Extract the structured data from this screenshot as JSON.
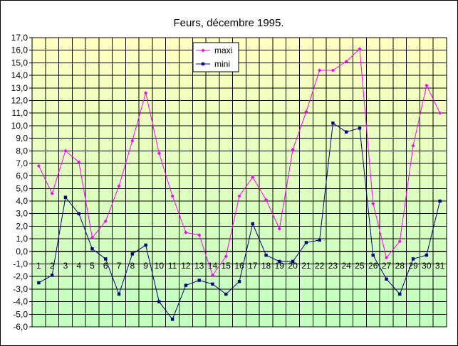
{
  "chart_data": {
    "type": "line",
    "title": "Feurs, décembre 1995.",
    "xlabel": "",
    "ylabel": "",
    "ylim": [
      -6,
      17
    ],
    "ytick_step": 1,
    "ytick_format": "comma1",
    "grid": true,
    "legend_position": "top-center",
    "x": [
      1,
      2,
      3,
      4,
      5,
      6,
      7,
      8,
      9,
      10,
      11,
      12,
      13,
      14,
      15,
      16,
      17,
      18,
      19,
      20,
      21,
      22,
      23,
      24,
      25,
      26,
      27,
      28,
      29,
      30,
      31
    ],
    "series": [
      {
        "name": "maxi",
        "color": "#ff00ff",
        "marker": "diamond",
        "values": [
          6.8,
          4.6,
          8.0,
          7.1,
          1.1,
          2.4,
          5.2,
          8.8,
          12.6,
          7.8,
          4.4,
          1.5,
          1.3,
          -1.9,
          -0.4,
          4.4,
          5.9,
          4.1,
          1.8,
          8.1,
          11.1,
          14.4,
          14.4,
          15.1,
          16.1,
          3.8,
          -0.5,
          0.8,
          8.4,
          13.2,
          11.0
        ]
      },
      {
        "name": "mini",
        "color": "#000080",
        "marker": "square",
        "values": [
          -2.5,
          -1.9,
          4.3,
          3.0,
          0.2,
          -0.6,
          -3.4,
          -0.2,
          0.5,
          -4.0,
          -5.4,
          -2.7,
          -2.3,
          -2.6,
          -3.4,
          -2.4,
          2.2,
          -0.3,
          -0.8,
          -0.8,
          0.7,
          0.9,
          10.2,
          9.5,
          9.8,
          -0.3,
          -2.2,
          -3.4,
          -0.6,
          -0.3,
          4.0
        ]
      }
    ],
    "colors": {
      "plot_top": "#ffffc0",
      "plot_bottom": "#c0ffc0",
      "grid": "#000000"
    }
  }
}
